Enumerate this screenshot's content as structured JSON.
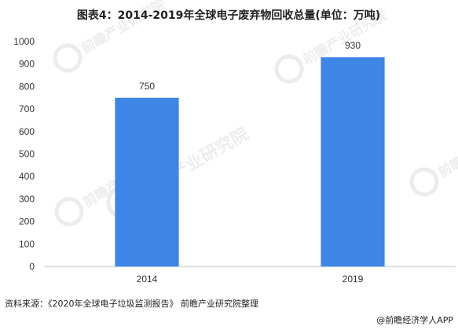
{
  "title": "图表4：2014-2019年全球电子废弃物回收总量(单位：万吨)",
  "source_note": "资料来源：《2020年全球电子垃圾监测报告》 前瞻产业研究院整理",
  "attribution": "@前瞻经济学人APP",
  "watermark": "前瞻产业研究院",
  "colors": {
    "bar": "#3f85e6",
    "axis": "#bfbfbf",
    "text": "#333333"
  },
  "chart_data": {
    "type": "bar",
    "title": "图表4：2014-2019年全球电子废弃物回收总量(单位：万吨)",
    "categories": [
      "2014",
      "2019"
    ],
    "values": [
      750,
      930
    ],
    "data_labels": [
      "750",
      "930"
    ],
    "xlabel": "",
    "ylabel": "",
    "ylim": [
      0,
      1000
    ],
    "yticks": [
      "0",
      "100",
      "200",
      "300",
      "400",
      "500",
      "600",
      "700",
      "800",
      "900",
      "1000"
    ],
    "grid": false,
    "legend": "none"
  }
}
